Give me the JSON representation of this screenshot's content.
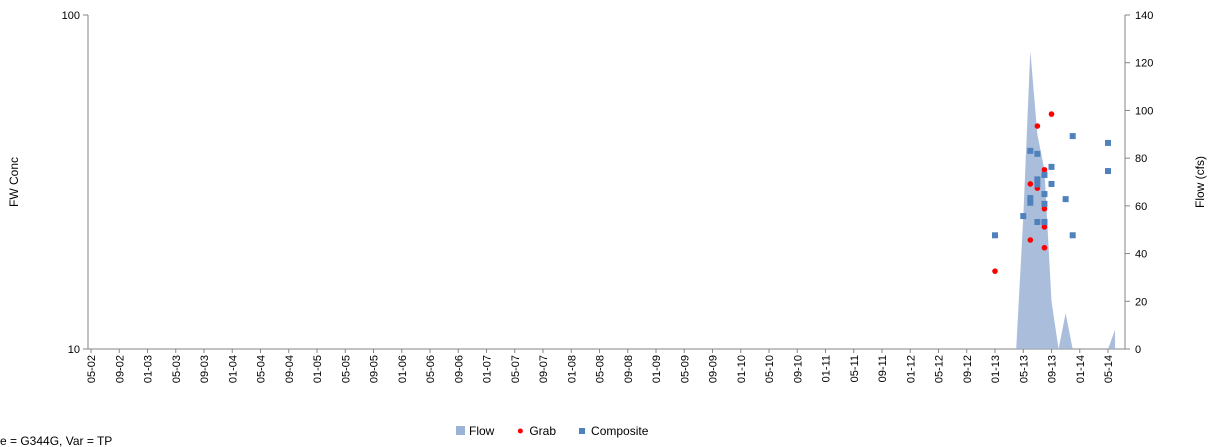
{
  "chart_data": {
    "type": "timeseries",
    "ylabel": "FW Conc",
    "y2label": "Flow (cfs)",
    "annotation": "e = G344G, Var = TP",
    "ylim": [
      10,
      100
    ],
    "yticks": [
      10,
      100
    ],
    "log_y": true,
    "y2lim": [
      0,
      140
    ],
    "y2ticks": [
      0,
      20,
      40,
      60,
      80,
      100,
      120,
      140
    ],
    "xlim": [
      "05-02",
      "05-14"
    ],
    "xticks": [
      "05-02",
      "09-02",
      "01-03",
      "05-03",
      "09-03",
      "01-04",
      "05-04",
      "09-04",
      "01-05",
      "05-05",
      "09-05",
      "01-06",
      "05-06",
      "09-06",
      "01-07",
      "05-07",
      "09-07",
      "01-08",
      "05-08",
      "09-08",
      "01-09",
      "05-09",
      "09-09",
      "01-10",
      "05-10",
      "09-10",
      "01-11",
      "05-11",
      "09-11",
      "01-12",
      "05-12",
      "09-12",
      "01-13",
      "05-13",
      "09-13",
      "01-14",
      "05-14"
    ],
    "legend": "bottom",
    "series": [
      {
        "name": "Flow",
        "color": "#9bb3d6",
        "kind": "area",
        "axis": "y2",
        "x": [
          "03-13",
          "04-13",
          "05-13",
          "06-13",
          "07-13",
          "08-13",
          "09-13",
          "10-13",
          "11-13",
          "12-13",
          "01-14",
          "02-14",
          "03-14",
          "04-14",
          "05-14",
          "06-14"
        ],
        "values": [
          0,
          0,
          55,
          125,
          90,
          75,
          20,
          0,
          15,
          0,
          0,
          0,
          0,
          0,
          0,
          8
        ]
      },
      {
        "name": "Grab",
        "color": "#ff0000",
        "kind": "dot",
        "x": [
          "01-13",
          "06-13",
          "06-13",
          "06-13",
          "07-13",
          "07-13",
          "08-13",
          "08-13",
          "08-13",
          "08-13",
          "09-13"
        ],
        "values": [
          17.1,
          21.2,
          28.1,
          31.2,
          30.3,
          46.5,
          34.4,
          20.1,
          23.2,
          26.3,
          50.5
        ]
      },
      {
        "name": "Composite",
        "color": "#4f81bd",
        "kind": "square",
        "x": [
          "01-13",
          "05-13",
          "06-13",
          "06-13",
          "06-13",
          "07-13",
          "07-13",
          "07-13",
          "07-13",
          "08-13",
          "08-13",
          "08-13",
          "08-13",
          "08-13",
          "09-13",
          "09-13",
          "11-13",
          "12-13",
          "12-13",
          "05-14",
          "05-14"
        ],
        "values": [
          21.9,
          25.0,
          39.2,
          27.4,
          28.3,
          32.2,
          31.1,
          38.4,
          24.0,
          24.0,
          29.1,
          27.2,
          33.2,
          24.0,
          31.2,
          35.1,
          28.1,
          43.4,
          21.9,
          34.1,
          41.4
        ]
      }
    ]
  }
}
